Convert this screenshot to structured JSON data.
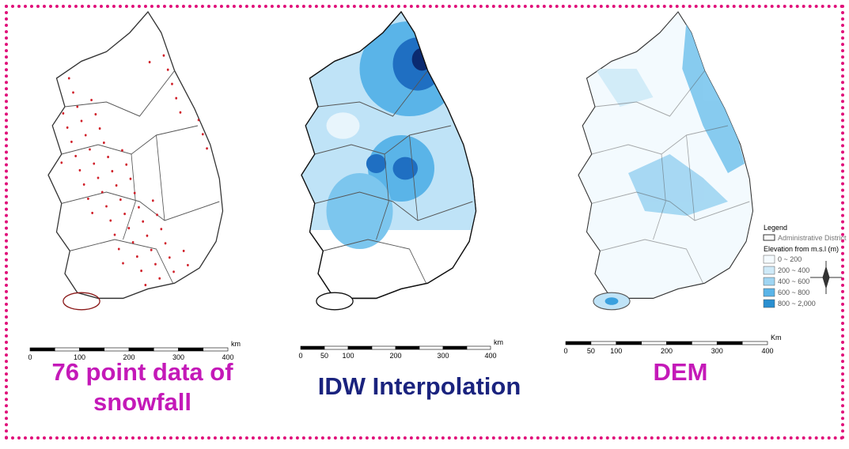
{
  "maps": [
    {
      "caption": "76 point data of snowfall",
      "scale_labels": [
        "0",
        "100",
        "200",
        "300",
        "400",
        "km"
      ]
    },
    {
      "caption": "IDW Interpolation",
      "scale_labels": [
        "0",
        "50",
        "100",
        "200",
        "300",
        "400",
        "km"
      ]
    },
    {
      "caption": "DEM",
      "scale_labels": [
        "0",
        "50",
        "100",
        "200",
        "300",
        "400",
        "Km"
      ]
    }
  ],
  "legend": {
    "title": "Legend",
    "boundary": "Administrative District",
    "elevation_title": "Elevation from m.s.l (m)",
    "classes": [
      "0 ~ 200",
      "200 ~ 400",
      "400 ~ 600",
      "600 ~ 800",
      "800 ~ 2,000"
    ]
  }
}
